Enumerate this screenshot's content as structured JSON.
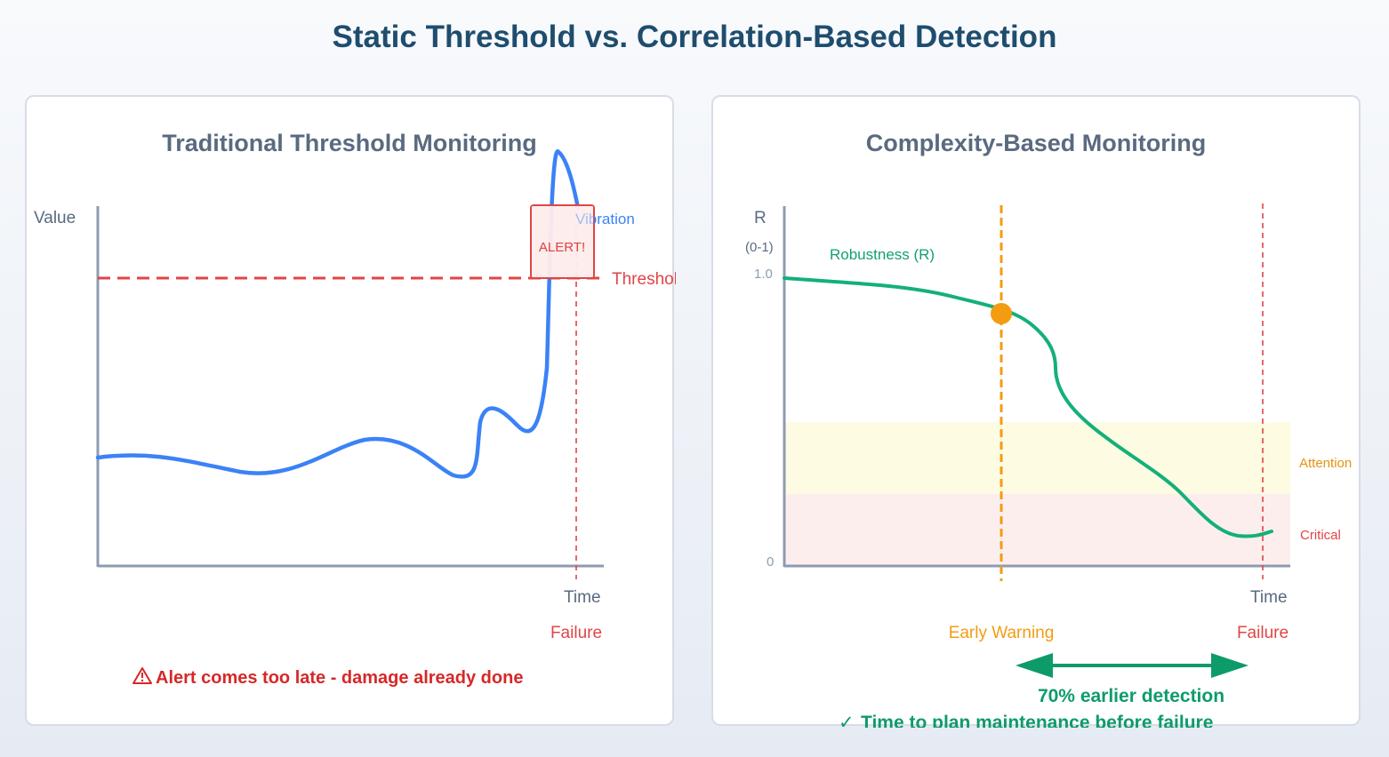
{
  "title": "Static Threshold vs. Correlation-Based Detection",
  "colors": {
    "blue": "#3b82f6",
    "red": "#e04545",
    "green": "#14b07a",
    "orange": "#f39c12",
    "axis": "#8e9bb0",
    "dark_green": "#0e9b6a"
  },
  "left_panel": {
    "title": "Traditional Threshold Monitoring",
    "y_label": "Value",
    "x_label": "Time",
    "series_label": "Vibration",
    "threshold_label": "Threshold",
    "alert_label": "ALERT!",
    "failure_label": "Failure",
    "warning_icon": "warning-icon",
    "warning_text": "Alert comes too late - damage already done"
  },
  "right_panel": {
    "title": "Complexity-Based Monitoring",
    "y_label": "R",
    "y_range_label": "(0-1)",
    "y_max_label": "1.0",
    "y_min_label": "0",
    "x_label": "Time",
    "series_label": "Robustness (R)",
    "attention_label": "Attention",
    "critical_label": "Critical",
    "early_warning_label": "Early Warning",
    "failure_label": "Failure",
    "gain_label": "70% earlier detection",
    "check_icon": "check-icon",
    "plan_text": "Time to plan maintenance before failure"
  }
}
